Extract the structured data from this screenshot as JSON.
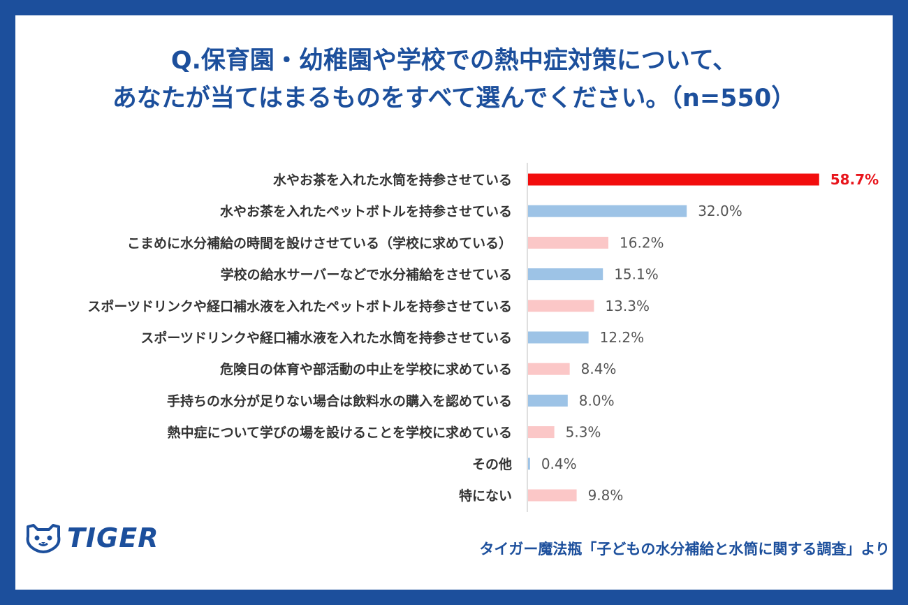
{
  "title_lines": [
    "Q.保育園・幼稚園や学校での熱中症対策について、",
    "あなたが当てはまるものをすべて選んでください。（n=550）"
  ],
  "brand": {
    "logo_text": "TIGER",
    "logo_icon": "tiger-face-icon"
  },
  "source": "タイガー魔法瓶「子どもの水分補給と水筒に関する調査」より",
  "colors": {
    "frame": "#1c4f9c",
    "highlight": "#f20d0d",
    "blue": "#9dc3e6",
    "pink": "#fbc7c7"
  },
  "chart_data": {
    "type": "bar",
    "orientation": "horizontal",
    "title": "Q.保育園・幼稚園や学校での熱中症対策について、あなたが当てはまるものをすべて選んでください。（n=550）",
    "categories": [
      "水やお茶を入れた水筒を持参させている",
      "水やお茶を入れたペットボトルを持参させている",
      "こまめに水分補給の時間を設けさせている（学校に求めている）",
      "学校の給水サーバーなどで水分補給をさせている",
      "スポーツドリンクや経口補水液を入れたペットボトルを持参させている",
      "スポーツドリンクや経口補水液を入れた水筒を持参させている",
      "危険日の体育や部活動の中止を学校に求めている",
      "手持ちの水分が足りない場合は飲料水の購入を認めている",
      "熱中症について学びの場を設けることを学校に求めている",
      "その他",
      "特にない"
    ],
    "values": [
      58.7,
      32.0,
      16.2,
      15.1,
      13.3,
      12.2,
      8.4,
      8.0,
      5.3,
      0.4,
      9.8
    ],
    "value_labels": [
      "58.7%",
      "32.0%",
      "16.2%",
      "15.1%",
      "13.3%",
      "12.2%",
      "8.4%",
      "8.0%",
      "5.3%",
      "0.4%",
      "9.8%"
    ],
    "bar_colors": [
      "#f20d0d",
      "#9dc3e6",
      "#fbc7c7",
      "#9dc3e6",
      "#fbc7c7",
      "#9dc3e6",
      "#fbc7c7",
      "#9dc3e6",
      "#fbc7c7",
      "#9dc3e6",
      "#fbc7c7"
    ],
    "highlight_index": 0,
    "xlim": [
      0,
      60
    ],
    "unit": "%",
    "grid": false
  }
}
